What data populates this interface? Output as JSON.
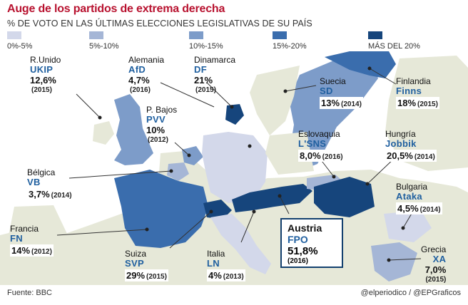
{
  "title": "Auge de los partidos de extrema derecha",
  "subtitle": "% DE VOTO EN LAS ÚLTIMAS ELECCIONES LEGISLATIVAS DE SU PAÍS",
  "legend": [
    {
      "label": "0%-5%",
      "color": "#d3d8ea"
    },
    {
      "label": "5%-10%",
      "color": "#a5b6d6"
    },
    {
      "label": "10%-15%",
      "color": "#7d9cc9"
    },
    {
      "label": "15%-20%",
      "color": "#3a6dad"
    },
    {
      "label": "MÁS DEL 20%",
      "color": "#16457c"
    }
  ],
  "countries": {
    "uk": {
      "country": "R.Unido",
      "party": "UKIP",
      "pct": "12,6%",
      "year": "(2015)"
    },
    "germany": {
      "country": "Alemania",
      "party": "AfD",
      "pct": "4,7%",
      "year": "(2016)"
    },
    "denmark": {
      "country": "Dinamarca",
      "party": "DF",
      "pct": "21%",
      "year": "(2015)"
    },
    "sweden": {
      "country": "Suecia",
      "party": "SD",
      "pct": "13%",
      "year": "(2014)"
    },
    "finland": {
      "country": "Finlandia",
      "party": "Finns",
      "pct": "18%",
      "year": "(2015)"
    },
    "netherlands": {
      "country": "P. Bajos",
      "party": "PVV",
      "pct": "10%",
      "year": "(2012)"
    },
    "slovakia": {
      "country": "Eslovaquia",
      "party": "L'SNS",
      "pct": "8,0%",
      "year": "(2016)"
    },
    "hungary": {
      "country": "Hungría",
      "party": "Jobbik",
      "pct": "20,5%",
      "year": "(2014)"
    },
    "belgium": {
      "country": "Bélgica",
      "party": "VB",
      "pct": "3,7%",
      "year": "(2014)"
    },
    "bulgaria": {
      "country": "Bulgaria",
      "party": "Ataka",
      "pct": "4,5%",
      "year": "(2014)"
    },
    "france": {
      "country": "Francia",
      "party": "FN",
      "pct": "14%",
      "year": "(2012)"
    },
    "austria": {
      "country": "Austria",
      "party": "FPO",
      "pct": "51,8%",
      "year": "(2016)"
    },
    "greece": {
      "country": "Grecia",
      "party": "XA",
      "pct": "7,0%",
      "year": "(2015)"
    },
    "switzerland": {
      "country": "Suiza",
      "party": "SVP",
      "pct": "29%",
      "year": "(2015)"
    },
    "italy": {
      "country": "Italia",
      "party": "LN",
      "pct": "4%",
      "year": "(2013)"
    }
  },
  "footer": {
    "source": "Fuente: BBC",
    "credit": "@elperiodico / @EPGraficos"
  }
}
